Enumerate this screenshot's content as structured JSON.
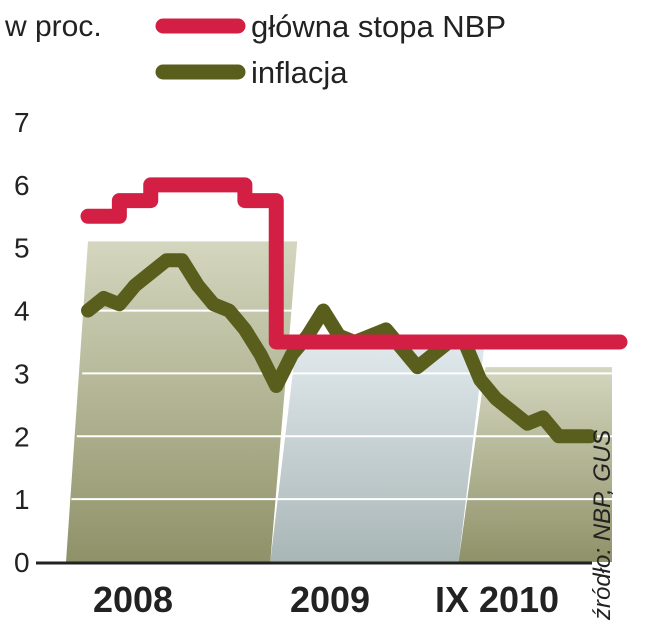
{
  "colors": {
    "rate": "#d41f45",
    "inflation": "#5a5e1d",
    "band_dark": "#aeb08c",
    "band_light": "#c7d3d8",
    "grid": "#ffffff",
    "axis": "#222222"
  },
  "chart_data": {
    "type": "line",
    "unit_label": "w proc.",
    "ylim": [
      0,
      7
    ],
    "y_ticks": [
      "0",
      "1",
      "2",
      "3",
      "4",
      "5",
      "6",
      "7"
    ],
    "x_ticks": [
      "2008",
      "2009",
      "IX 2010"
    ],
    "xlim": [
      "2008-01",
      "2010-09"
    ],
    "grid": true,
    "legend_position": "top",
    "source": "źródło: NBP, GUS",
    "series": [
      {
        "name": "główna stopa NBP",
        "color_key": "rate",
        "points": [
          [
            "2008-01",
            5.5
          ],
          [
            "2008-02",
            5.5
          ],
          [
            "2008-03",
            5.75
          ],
          [
            "2008-04",
            5.75
          ],
          [
            "2008-05",
            6.0
          ],
          [
            "2008-06",
            6.0
          ],
          [
            "2008-07",
            6.0
          ],
          [
            "2008-08",
            6.0
          ],
          [
            "2008-09",
            6.0
          ],
          [
            "2008-10",
            6.0
          ],
          [
            "2008-11",
            5.75
          ],
          [
            "2008-12",
            5.75
          ],
          [
            "2009-01",
            3.5
          ],
          [
            "2009-03",
            3.5
          ],
          [
            "2009-06",
            3.5
          ],
          [
            "2009-09",
            3.5
          ],
          [
            "2009-12",
            3.5
          ],
          [
            "2010-03",
            3.5
          ],
          [
            "2010-06",
            3.5
          ],
          [
            "2010-09",
            3.5
          ]
        ]
      },
      {
        "name": "inflacja",
        "color_key": "inflation",
        "points": [
          [
            "2008-01",
            4.0
          ],
          [
            "2008-02",
            4.2
          ],
          [
            "2008-03",
            4.1
          ],
          [
            "2008-04",
            4.4
          ],
          [
            "2008-05",
            4.6
          ],
          [
            "2008-06",
            4.8
          ],
          [
            "2008-07",
            4.8
          ],
          [
            "2008-08",
            4.4
          ],
          [
            "2008-09",
            4.1
          ],
          [
            "2008-10",
            4.0
          ],
          [
            "2008-11",
            3.7
          ],
          [
            "2008-12",
            3.3
          ],
          [
            "2009-01",
            2.8
          ],
          [
            "2009-02",
            3.3
          ],
          [
            "2009-03",
            3.6
          ],
          [
            "2009-04",
            4.0
          ],
          [
            "2009-05",
            3.6
          ],
          [
            "2009-06",
            3.5
          ],
          [
            "2009-07",
            3.6
          ],
          [
            "2009-08",
            3.7
          ],
          [
            "2009-09",
            3.4
          ],
          [
            "2009-10",
            3.1
          ],
          [
            "2009-11",
            3.3
          ],
          [
            "2009-12",
            3.5
          ],
          [
            "2010-01",
            3.5
          ],
          [
            "2010-02",
            2.9
          ],
          [
            "2010-03",
            2.6
          ],
          [
            "2010-04",
            2.4
          ],
          [
            "2010-05",
            2.2
          ],
          [
            "2010-06",
            2.3
          ],
          [
            "2010-07",
            2.0
          ],
          [
            "2010-08",
            2.0
          ],
          [
            "2010-09",
            2.0
          ]
        ]
      }
    ]
  }
}
